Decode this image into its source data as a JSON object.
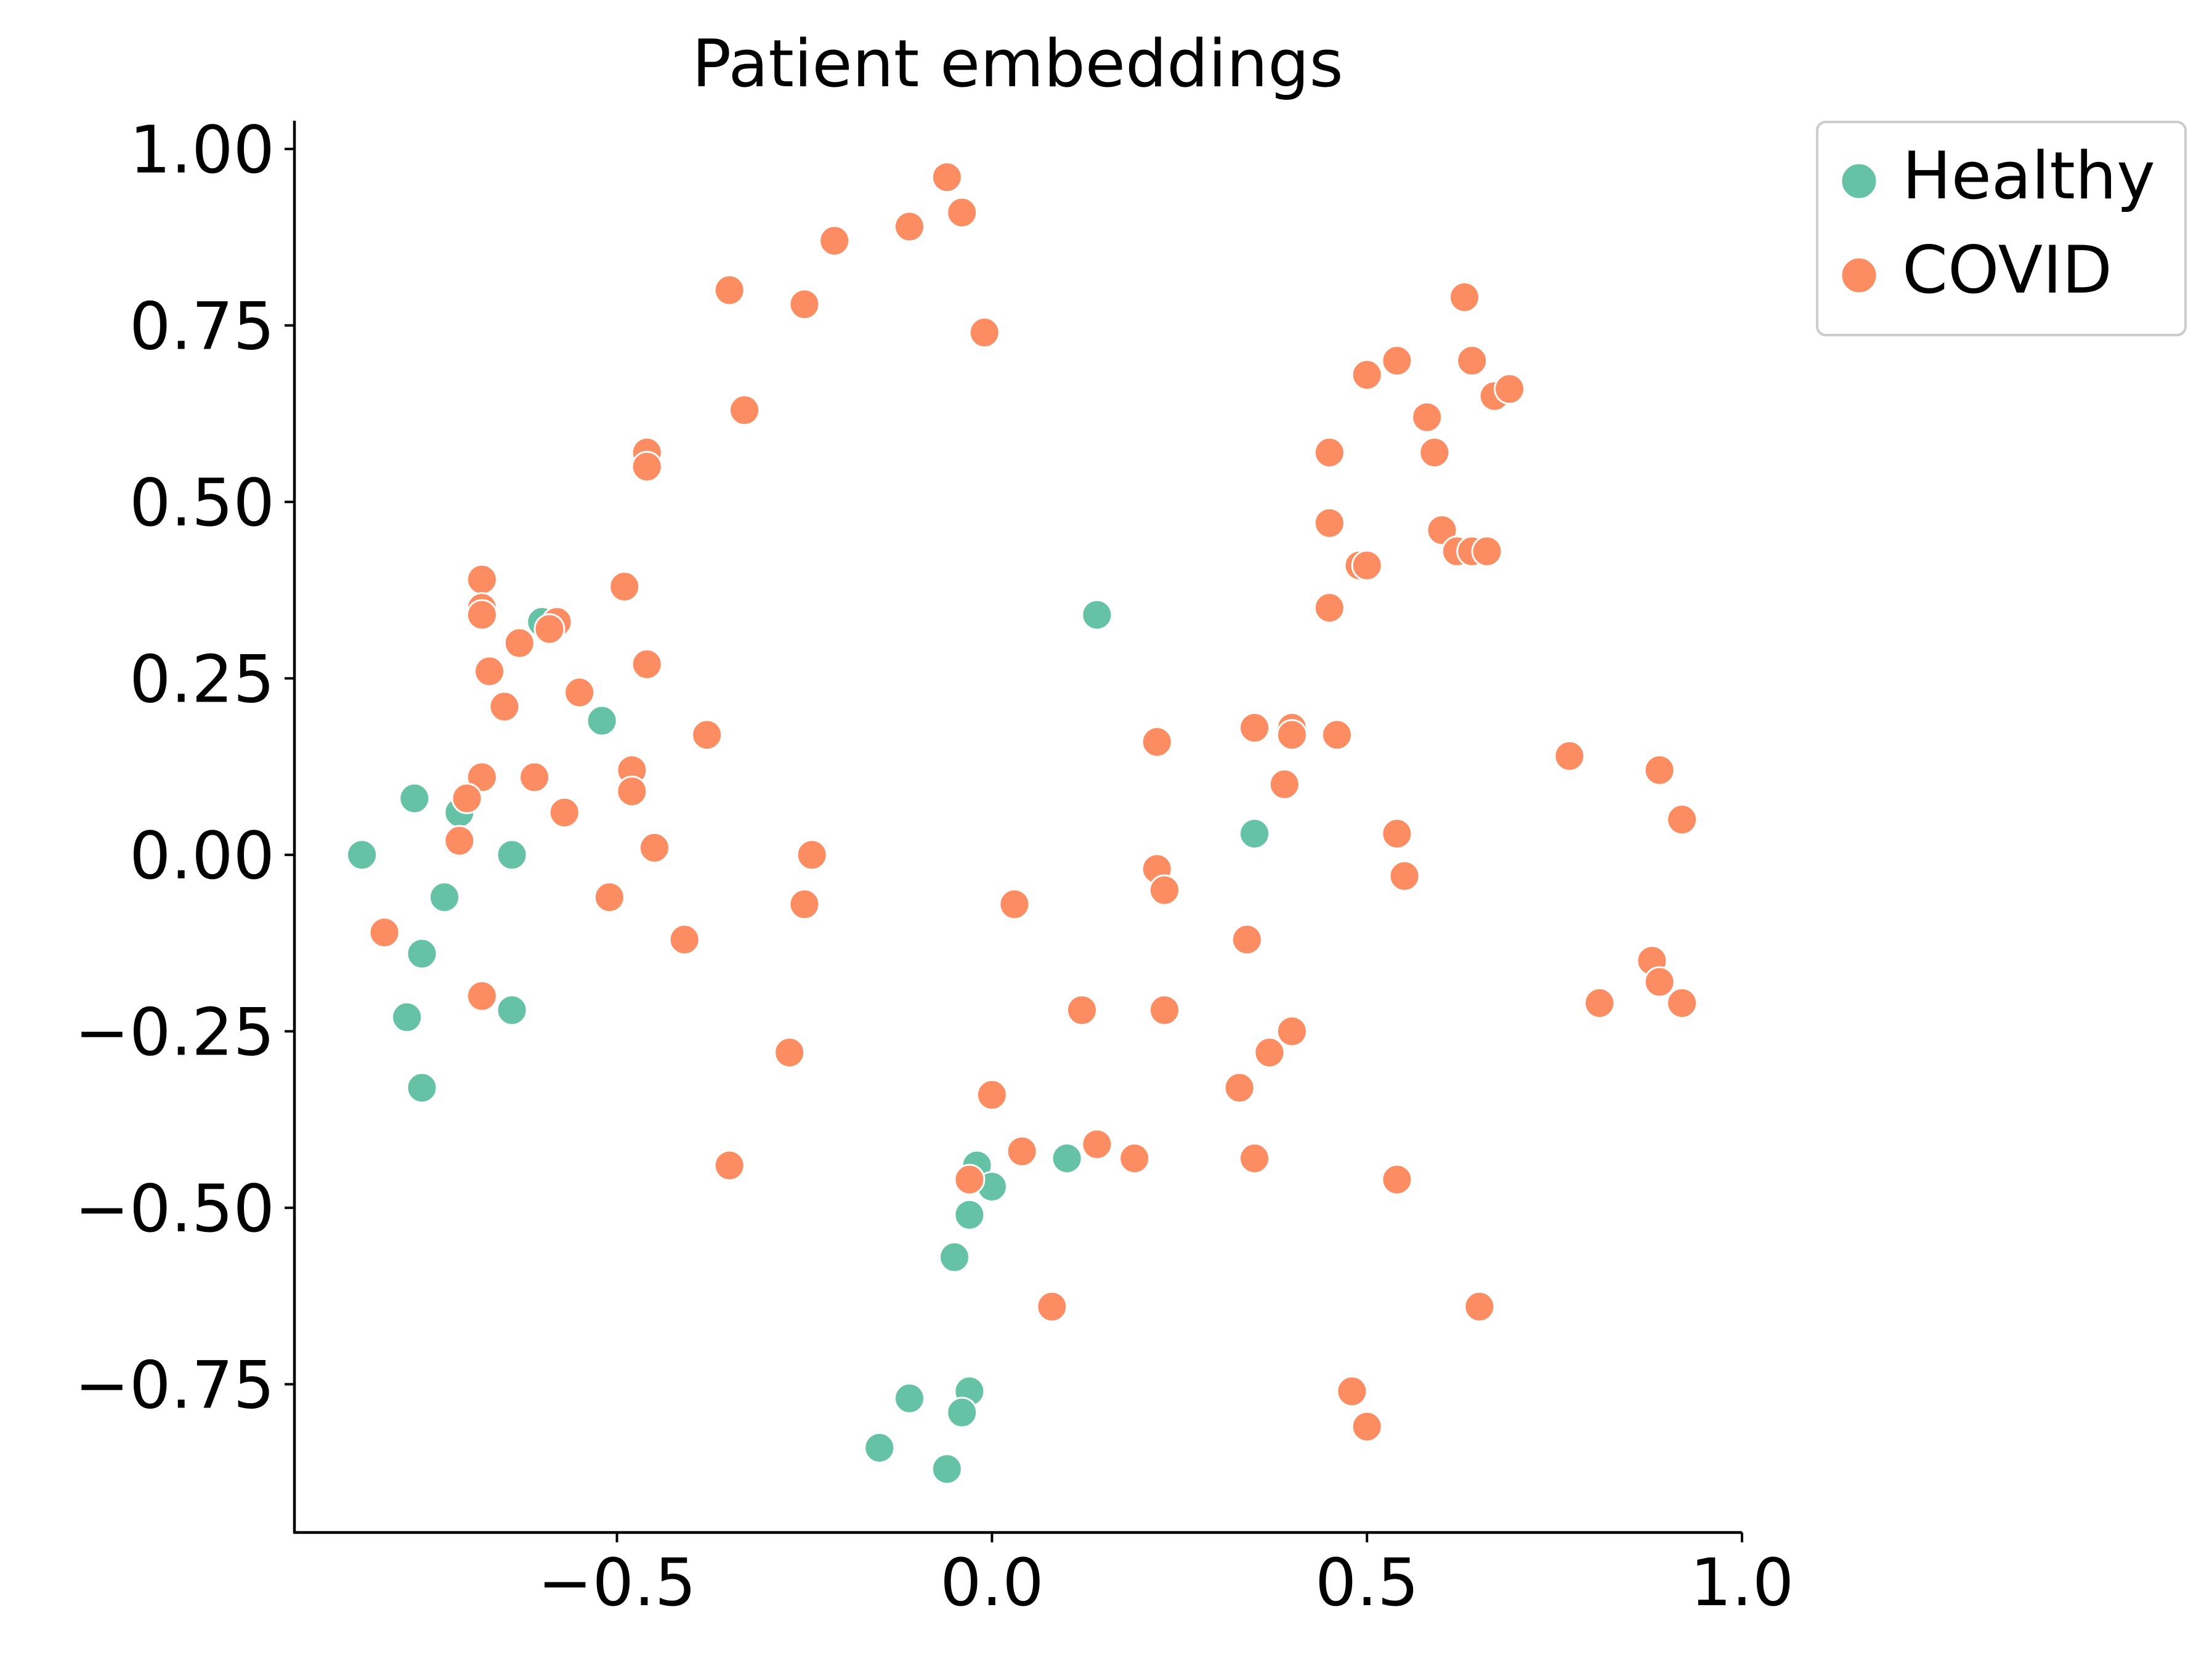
{
  "chart_data": {
    "type": "scatter",
    "title": "Patient embeddings",
    "xlabel": "",
    "ylabel": "",
    "xlim": [
      -0.93,
      1.0
    ],
    "ylim": [
      -0.96,
      1.04
    ],
    "x_ticks": [
      -0.5,
      0.0,
      0.5,
      1.0
    ],
    "x_tick_labels": [
      "−0.5",
      "0.0",
      "0.5",
      "1.0"
    ],
    "y_ticks": [
      1.0,
      0.75,
      0.5,
      0.25,
      0.0,
      -0.25,
      -0.5,
      -0.75
    ],
    "y_tick_labels": [
      "1.00",
      "0.75",
      "0.50",
      "0.25",
      "0.00",
      "−0.25",
      "−0.50",
      "−0.75"
    ],
    "grid": false,
    "legend_position": "outside-top-right",
    "series": [
      {
        "name": "Healthy",
        "color": "#66c2a5",
        "points": [
          [
            -0.84,
            0.0
          ],
          [
            -0.77,
            0.08
          ],
          [
            -0.71,
            0.06
          ],
          [
            -0.73,
            -0.06
          ],
          [
            -0.76,
            -0.14
          ],
          [
            -0.78,
            -0.23
          ],
          [
            -0.76,
            -0.33
          ],
          [
            -0.64,
            0.0
          ],
          [
            -0.64,
            -0.22
          ],
          [
            -0.6,
            0.33
          ],
          [
            -0.52,
            0.19
          ],
          [
            0.14,
            0.34
          ],
          [
            0.35,
            0.03
          ],
          [
            -0.02,
            -0.44
          ],
          [
            0.0,
            -0.47
          ],
          [
            -0.03,
            -0.51
          ],
          [
            -0.05,
            -0.57
          ],
          [
            0.1,
            -0.43
          ],
          [
            -0.15,
            -0.84
          ],
          [
            -0.11,
            -0.77
          ],
          [
            -0.03,
            -0.76
          ],
          [
            -0.04,
            -0.79
          ],
          [
            -0.06,
            -0.87
          ]
        ]
      },
      {
        "name": "COVID",
        "color": "#fc8d62",
        "points": [
          [
            -0.06,
            0.96
          ],
          [
            -0.04,
            0.91
          ],
          [
            -0.11,
            0.89
          ],
          [
            -0.21,
            0.87
          ],
          [
            -0.35,
            0.8
          ],
          [
            -0.25,
            0.78
          ],
          [
            -0.01,
            0.74
          ],
          [
            -0.33,
            0.63
          ],
          [
            -0.46,
            0.57
          ],
          [
            -0.46,
            0.55
          ],
          [
            -0.68,
            0.39
          ],
          [
            -0.68,
            0.35
          ],
          [
            -0.68,
            0.34
          ],
          [
            -0.49,
            0.38
          ],
          [
            -0.58,
            0.33
          ],
          [
            -0.59,
            0.32
          ],
          [
            -0.63,
            0.3
          ],
          [
            -0.67,
            0.26
          ],
          [
            -0.46,
            0.27
          ],
          [
            -0.55,
            0.23
          ],
          [
            -0.65,
            0.21
          ],
          [
            -0.38,
            0.17
          ],
          [
            -0.68,
            0.11
          ],
          [
            -0.7,
            0.08
          ],
          [
            -0.61,
            0.11
          ],
          [
            -0.48,
            0.12
          ],
          [
            -0.48,
            0.09
          ],
          [
            -0.57,
            0.06
          ],
          [
            -0.71,
            0.02
          ],
          [
            -0.45,
            0.01
          ],
          [
            -0.24,
            0.0
          ],
          [
            -0.51,
            -0.06
          ],
          [
            -0.25,
            -0.07
          ],
          [
            -0.81,
            -0.11
          ],
          [
            -0.41,
            -0.12
          ],
          [
            -0.68,
            -0.2
          ],
          [
            -0.27,
            -0.28
          ],
          [
            -0.35,
            -0.44
          ],
          [
            0.63,
            0.79
          ],
          [
            0.54,
            0.7
          ],
          [
            0.5,
            0.68
          ],
          [
            0.64,
            0.7
          ],
          [
            0.67,
            0.65
          ],
          [
            0.69,
            0.66
          ],
          [
            0.58,
            0.62
          ],
          [
            0.45,
            0.57
          ],
          [
            0.59,
            0.57
          ],
          [
            0.45,
            0.47
          ],
          [
            0.6,
            0.46
          ],
          [
            0.62,
            0.43
          ],
          [
            0.64,
            0.43
          ],
          [
            0.66,
            0.43
          ],
          [
            0.49,
            0.41
          ],
          [
            0.5,
            0.41
          ],
          [
            0.45,
            0.35
          ],
          [
            0.22,
            0.16
          ],
          [
            0.35,
            0.18
          ],
          [
            0.4,
            0.18
          ],
          [
            0.4,
            0.17
          ],
          [
            0.46,
            0.17
          ],
          [
            0.39,
            0.1
          ],
          [
            0.77,
            0.14
          ],
          [
            0.89,
            0.12
          ],
          [
            0.92,
            0.05
          ],
          [
            0.54,
            0.03
          ],
          [
            0.22,
            -0.02
          ],
          [
            0.23,
            -0.05
          ],
          [
            0.55,
            -0.03
          ],
          [
            0.03,
            -0.07
          ],
          [
            0.34,
            -0.12
          ],
          [
            0.88,
            -0.15
          ],
          [
            0.89,
            -0.18
          ],
          [
            0.81,
            -0.21
          ],
          [
            0.92,
            -0.21
          ],
          [
            0.12,
            -0.22
          ],
          [
            0.23,
            -0.22
          ],
          [
            0.4,
            -0.25
          ],
          [
            0.37,
            -0.28
          ],
          [
            0.33,
            -0.33
          ],
          [
            0.0,
            -0.34
          ],
          [
            0.04,
            -0.42
          ],
          [
            0.14,
            -0.41
          ],
          [
            0.19,
            -0.43
          ],
          [
            0.35,
            -0.43
          ],
          [
            -0.03,
            -0.46
          ],
          [
            0.54,
            -0.46
          ],
          [
            0.08,
            -0.64
          ],
          [
            0.65,
            -0.64
          ],
          [
            0.48,
            -0.76
          ],
          [
            0.5,
            -0.81
          ]
        ]
      }
    ]
  }
}
